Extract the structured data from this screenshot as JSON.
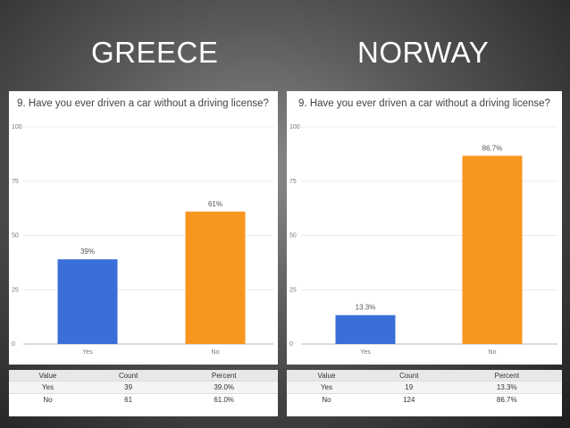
{
  "headings": {
    "left": "GREECE",
    "right": "NORWAY"
  },
  "chart_data": [
    {
      "type": "bar",
      "title": "9. Have you ever driven a car without a driving license?",
      "categories": [
        "Yes",
        "No"
      ],
      "values": [
        39,
        61
      ],
      "data_labels": [
        "39%",
        "61%"
      ],
      "yticks": [
        "0",
        "25",
        "50",
        "75",
        "100"
      ],
      "ylim": [
        0,
        100
      ],
      "colors": [
        "#3a6fd8",
        "#f7961f"
      ],
      "grid": true
    },
    {
      "type": "bar",
      "title": "9. Have you ever driven a car without a driving license?",
      "categories": [
        "Yes",
        "No"
      ],
      "values": [
        13.3,
        86.7
      ],
      "data_labels": [
        "13.3%",
        "86.7%"
      ],
      "yticks": [
        "0",
        "25",
        "50",
        "75",
        "100"
      ],
      "ylim": [
        0,
        100
      ],
      "colors": [
        "#3a6fd8",
        "#f7961f"
      ],
      "grid": true
    }
  ],
  "tables": [
    {
      "headers": [
        "Value",
        "Count",
        "Percent"
      ],
      "rows": [
        [
          "Yes",
          "39",
          "39.0%"
        ],
        [
          "No",
          "61",
          "61.0%"
        ]
      ]
    },
    {
      "headers": [
        "Value",
        "Count",
        "Percent"
      ],
      "rows": [
        [
          "Yes",
          "19",
          "13.3%"
        ],
        [
          "No",
          "124",
          "86.7%"
        ]
      ]
    }
  ]
}
